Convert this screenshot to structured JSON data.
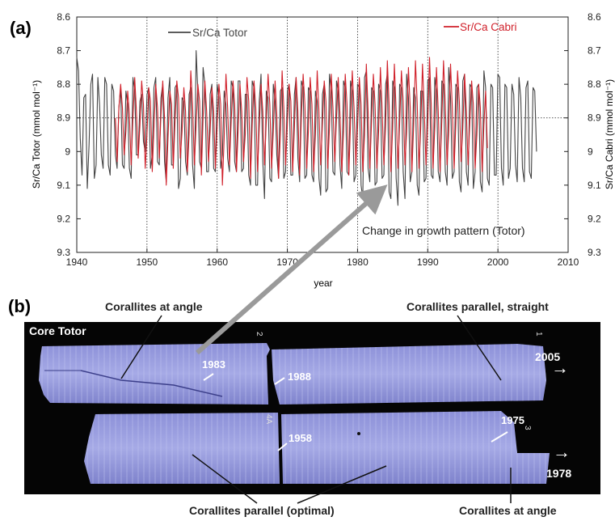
{
  "panel_labels": {
    "a": "(a)",
    "b": "(b)"
  },
  "chart_data": {
    "type": "line",
    "title": "",
    "xlabel": "year",
    "ylabel_left": "Sr/Ca Totor (mmol mol⁻¹)",
    "ylabel_right": "Sr/Ca Cabri (mmol mol⁻¹)",
    "x_ticks": [
      1940,
      1950,
      1960,
      1970,
      1980,
      1990,
      2000,
      2010
    ],
    "xlim": [
      1940,
      2010
    ],
    "y_ticks": [
      "8.6",
      "8.7",
      "8.8",
      "8.9",
      "9",
      "9.1",
      "9.2",
      "9.3"
    ],
    "y_tick_values": [
      8.6,
      8.7,
      8.8,
      8.9,
      9.0,
      9.1,
      9.2,
      9.3
    ],
    "ylim": [
      8.6,
      9.3
    ],
    "y_inverted": true,
    "reference_line_y": 8.9,
    "grid": "vertical dotted lines each decade",
    "legend_placement": "top",
    "annotation": "Change in growth pattern (Totor)",
    "series": [
      {
        "name": "Sr/Ca Totor",
        "color": "#444444",
        "x_start": 1940.0,
        "step": 0.25,
        "values": [
          8.72,
          8.76,
          8.96,
          9.07,
          8.84,
          8.83,
          9.11,
          8.98,
          8.8,
          8.77,
          9.08,
          9.04,
          8.78,
          8.86,
          9.01,
          9.05,
          8.78,
          8.8,
          9.04,
          9.07,
          8.8,
          8.82,
          9.01,
          9.05,
          8.87,
          8.81,
          9.04,
          9.05,
          8.82,
          8.86,
          9.05,
          9.08,
          8.78,
          8.82,
          9.01,
          9.01,
          8.85,
          8.83,
          8.97,
          9.0,
          8.83,
          8.81,
          9.05,
          9.01,
          8.81,
          8.78,
          9.03,
          9.04,
          8.84,
          8.8,
          9.03,
          9.09,
          8.84,
          8.78,
          9.04,
          9.04,
          8.81,
          8.8,
          9.11,
          9.08,
          8.84,
          8.85,
          9.03,
          9.07,
          8.83,
          8.81,
          9.04,
          9.11,
          8.7,
          8.82,
          9.03,
          9.05,
          8.75,
          8.8,
          9.06,
          9.06,
          8.83,
          8.8,
          9.05,
          9.06,
          8.8,
          8.84,
          9.05,
          9.01,
          8.82,
          8.86,
          9.02,
          9.06,
          8.79,
          8.81,
          9.03,
          9.06,
          8.79,
          8.79,
          9.06,
          9.05,
          8.83,
          8.83,
          9.07,
          9.1,
          8.79,
          8.81,
          9.1,
          9.1,
          8.85,
          8.77,
          9.03,
          9.14,
          8.82,
          8.84,
          9.08,
          9.09,
          8.8,
          8.85,
          9.01,
          9.08,
          8.82,
          8.81,
          9.08,
          9.06,
          8.82,
          8.8,
          9.07,
          9.07,
          8.83,
          8.78,
          9.02,
          9.09,
          8.79,
          8.81,
          9.08,
          9.07,
          8.81,
          8.82,
          9.07,
          9.09,
          8.82,
          8.85,
          9.08,
          9.13,
          8.83,
          8.8,
          9.12,
          9.11,
          8.77,
          8.82,
          9.06,
          9.07,
          8.79,
          8.82,
          9.04,
          9.11,
          8.79,
          8.81,
          9.06,
          9.07,
          8.79,
          8.82,
          9.09,
          9.07,
          8.8,
          8.81,
          9.1,
          9.14,
          8.78,
          8.76,
          9.05,
          9.09,
          8.81,
          8.82,
          9.1,
          9.09,
          8.8,
          8.82,
          9.08,
          9.07,
          8.8,
          8.77,
          9.12,
          9.14,
          8.79,
          8.81,
          9.08,
          9.16,
          8.8,
          8.81,
          9.06,
          9.14,
          8.77,
          8.84,
          9.09,
          9.06,
          8.81,
          8.84,
          9.1,
          9.13,
          8.82,
          8.82,
          9.09,
          9.08,
          8.79,
          8.78,
          9.07,
          9.08,
          8.78,
          8.82,
          9.06,
          9.09,
          8.79,
          8.8,
          9.06,
          9.1,
          8.75,
          8.84,
          9.08,
          9.06,
          8.8,
          8.81,
          9.09,
          9.12,
          8.79,
          8.77,
          9.06,
          9.1,
          8.8,
          8.81,
          9.11,
          9.06,
          8.81,
          8.8,
          9.09,
          9.12,
          8.76,
          8.81,
          9.08,
          9.1,
          8.8,
          8.81,
          9.07,
          9.07,
          8.77,
          8.78,
          9.05,
          9.1,
          8.8,
          8.81,
          9.08,
          9.05,
          8.8,
          8.83,
          9.04,
          9.09,
          8.78,
          8.84,
          9.05,
          9.09,
          8.81,
          8.79,
          9.06,
          9.08,
          8.81,
          8.82,
          9.0
        ]
      },
      {
        "name": "Sr/Ca Cabri",
        "color": "#d0202a",
        "x_start": 1945.5,
        "step": 0.25,
        "values": [
          8.9,
          9.03,
          8.87,
          8.8,
          8.87,
          9.01,
          8.94,
          8.82,
          8.89,
          9.04,
          8.9,
          8.78,
          8.88,
          9.02,
          8.92,
          8.79,
          8.86,
          9.05,
          8.95,
          8.81,
          8.85,
          9.06,
          8.93,
          8.8,
          8.87,
          9.02,
          8.89,
          8.79,
          8.9,
          9.1,
          8.96,
          8.82,
          8.86,
          9.05,
          8.91,
          8.79,
          8.84,
          9.02,
          8.94,
          8.81,
          8.88,
          9.06,
          8.95,
          8.76,
          8.86,
          9.04,
          8.92,
          8.8,
          8.85,
          9.07,
          8.9,
          8.79,
          8.88,
          9.03,
          8.94,
          8.81,
          8.88,
          9.05,
          8.93,
          8.8,
          8.86,
          9.1,
          8.96,
          8.77,
          8.87,
          9.04,
          8.91,
          8.79,
          8.86,
          9.06,
          8.93,
          8.8,
          8.88,
          9.03,
          8.95,
          8.78,
          8.85,
          9.08,
          8.92,
          8.79,
          8.87,
          9.06,
          8.93,
          8.8,
          8.88,
          9.04,
          8.91,
          8.77,
          8.86,
          9.05,
          8.94,
          8.79,
          8.89,
          9.08,
          8.95,
          8.76,
          8.87,
          9.04,
          8.92,
          8.8,
          8.85,
          9.06,
          8.93,
          8.78,
          8.88,
          9.07,
          8.9,
          8.77,
          8.86,
          9.05,
          8.94,
          8.78,
          8.86,
          9.06,
          8.95,
          8.76,
          8.88,
          9.04,
          8.92,
          8.79,
          8.85,
          9.05,
          8.93,
          8.77,
          8.87,
          9.03,
          8.9,
          8.78,
          8.89,
          9.06,
          8.94,
          8.77,
          8.86,
          9.07,
          8.92,
          8.76,
          8.87,
          9.04,
          8.93,
          8.78,
          8.86,
          9.06,
          8.95,
          8.74,
          8.88,
          9.05,
          8.91,
          8.77,
          8.86,
          9.05,
          8.94,
          8.75,
          8.87,
          9.04,
          8.92,
          8.73,
          8.86,
          9.06,
          8.93,
          8.74,
          8.88,
          9.05,
          8.92,
          8.76,
          8.85,
          9.04,
          8.94,
          8.75,
          8.87,
          9.06,
          8.92,
          8.73,
          8.86,
          9.05,
          8.93,
          8.74,
          8.87,
          9.04,
          8.92,
          8.72,
          8.86,
          9.05,
          8.93,
          8.75,
          8.88,
          9.06,
          8.91,
          8.73,
          8.86,
          9.04,
          8.94,
          8.74,
          8.87,
          9.05,
          8.92,
          8.76,
          8.85,
          9.03,
          8.93,
          8.77,
          8.88,
          9.04,
          8.91,
          8.79,
          8.86,
          9.05,
          8.95,
          8.8,
          8.87,
          9.06,
          8.92,
          8.82,
          8.99
        ]
      }
    ]
  },
  "photo": {
    "core_label": "Core Totor",
    "year_labels": {
      "y1983": "1983",
      "y1988": "1988",
      "y2005": "2005",
      "y1958": "1958",
      "y1975": "1975",
      "y1978": "1978"
    },
    "section_labels": {
      "s2": "2",
      "s1": "1",
      "s4a": "4A",
      "s3": "3"
    },
    "callouts": {
      "corallites_at_angle_top": "Corallites at angle",
      "corallites_parallel_straight": "Corallites parallel, straight",
      "corallites_parallel_optimal": "Corallites parallel (optimal)",
      "corallites_at_angle_bottom": "Corallites at angle"
    },
    "arrow_glyph": "→"
  }
}
